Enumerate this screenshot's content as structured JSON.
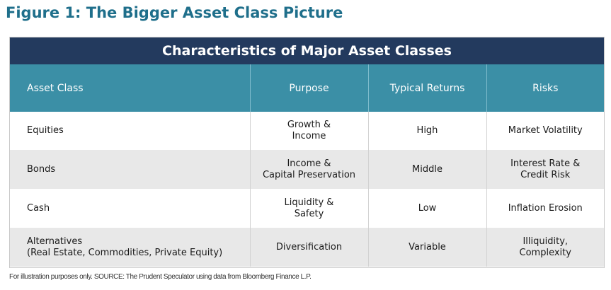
{
  "figure": {
    "title": "Figure 1: The Bigger Asset Class Picture"
  },
  "table": {
    "title": "Characteristics of Major Asset Classes",
    "columns": [
      "Asset Class",
      "Purpose",
      "Typical Returns",
      "Risks"
    ],
    "rows": [
      {
        "asset_class": [
          "Equities"
        ],
        "purpose": [
          "Growth &",
          "Income"
        ],
        "typical_returns": [
          "High"
        ],
        "risks": [
          "Market Volatility"
        ]
      },
      {
        "asset_class": [
          "Bonds"
        ],
        "purpose": [
          "Income &",
          "Capital Preservation"
        ],
        "typical_returns": [
          "Middle"
        ],
        "risks": [
          "Interest Rate &",
          "Credit Risk"
        ]
      },
      {
        "asset_class": [
          "Cash"
        ],
        "purpose": [
          "Liquidity &",
          "Safety"
        ],
        "typical_returns": [
          "Low"
        ],
        "risks": [
          "Inflation Erosion"
        ]
      },
      {
        "asset_class": [
          "Alternatives",
          "(Real Estate, Commodities, Private Equity)"
        ],
        "purpose": [
          "Diversification"
        ],
        "typical_returns": [
          "Variable"
        ],
        "risks": [
          "Illiquidity,",
          "Complexity"
        ]
      }
    ],
    "colors": {
      "title_bar": "#233a5e",
      "header_row": "#3b8fa6",
      "alt_row": "#e8e8e8",
      "figure_title": "#1f6f8b"
    }
  },
  "footnote": "For illustration purposes only. SOURCE: The Prudent Speculator using data from Bloomberg Finance L.P."
}
